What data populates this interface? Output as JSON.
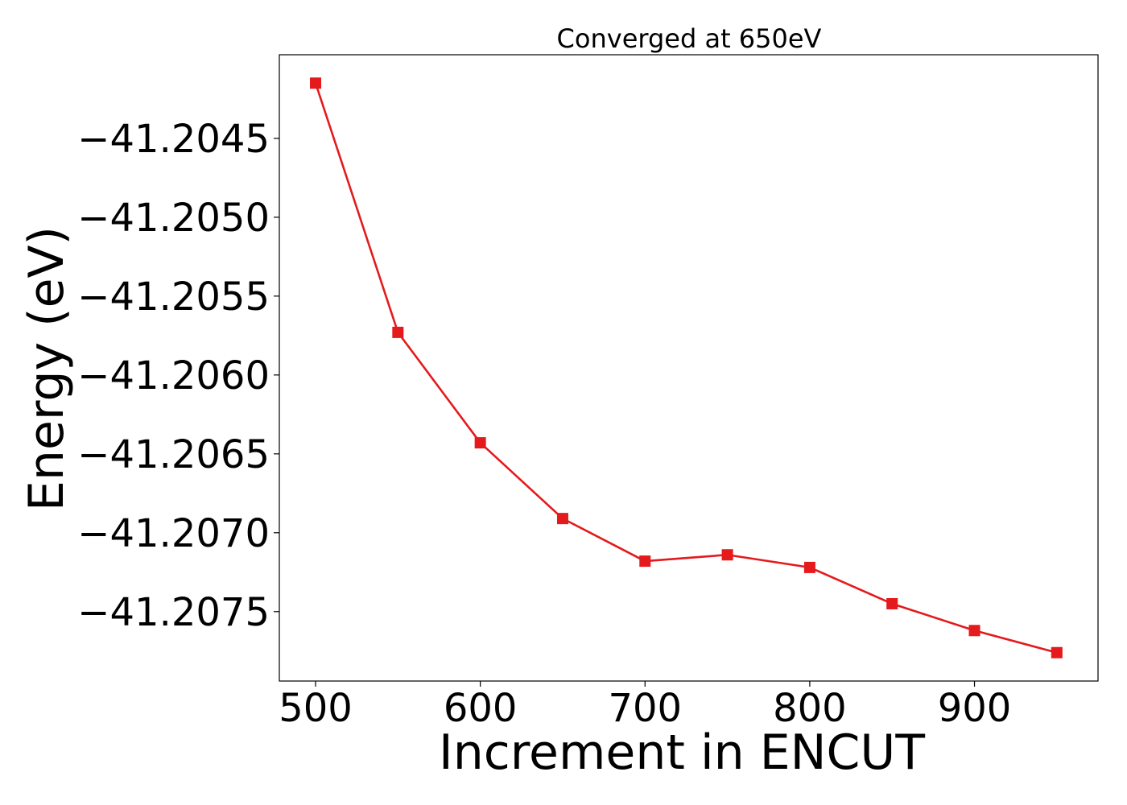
{
  "chart_data": {
    "type": "line",
    "title": "Converged at 650eV",
    "xlabel": "Increment in ENCUT",
    "ylabel": "Energy (eV)",
    "x": [
      500,
      550,
      600,
      650,
      700,
      750,
      800,
      850,
      900,
      950
    ],
    "series": [
      {
        "values": [
          -41.20415,
          -41.20573,
          -41.20643,
          -41.20691,
          -41.20718,
          -41.20714,
          -41.20722,
          -41.20745,
          -41.20762,
          -41.20776
        ],
        "color": "#e41a1c",
        "marker": "square"
      }
    ],
    "xlim": [
      478,
      975
    ],
    "ylim": [
      -41.20794,
      -41.20397
    ],
    "xticks": [
      500,
      600,
      700,
      800,
      900
    ],
    "xtick_labels": [
      "500",
      "600",
      "700",
      "800",
      "900"
    ],
    "yticks": [
      -41.2045,
      -41.205,
      -41.2055,
      -41.206,
      -41.2065,
      -41.207,
      -41.2075
    ],
    "ytick_labels": [
      "−41.2045",
      "−41.2050",
      "−41.2055",
      "−41.2060",
      "−41.2065",
      "−41.2070",
      "−41.2075"
    ],
    "grid": false,
    "legend": "none"
  }
}
